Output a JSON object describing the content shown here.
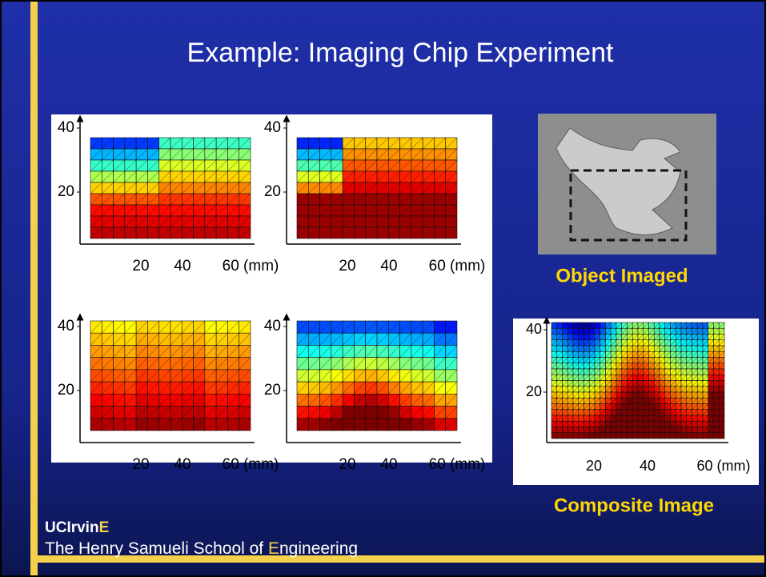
{
  "title": "Example: Imaging Chip Experiment",
  "plots": [
    {
      "yticks": [
        "40",
        "20"
      ],
      "xticks": [
        "20",
        "40",
        "60 (mm)"
      ]
    },
    {
      "yticks": [
        "40",
        "20"
      ],
      "xticks": [
        "20",
        "40",
        "60 (mm)"
      ]
    },
    {
      "yticks": [
        "40",
        "20"
      ],
      "xticks": [
        "20",
        "40",
        "60 (mm)"
      ]
    },
    {
      "yticks": [
        "40",
        "20"
      ],
      "xticks": [
        "20",
        "40",
        "60 (mm)"
      ]
    }
  ],
  "object_caption": "Object Imaged",
  "composite": {
    "yticks": [
      "40",
      "20"
    ],
    "xticks": [
      "20",
      "40",
      "60 (mm)"
    ]
  },
  "composite_caption": "Composite Image",
  "footer": {
    "brand_prefix": "UCIrvin",
    "brand_suffix": "E",
    "school_prefix": "The Henry Samueli School of ",
    "school_letter": "E",
    "school_suffix": "ngineering"
  }
}
